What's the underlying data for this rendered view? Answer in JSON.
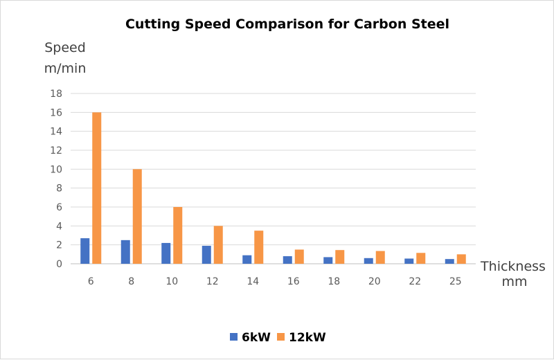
{
  "chart_data": {
    "type": "bar",
    "title": "Cutting Speed Comparison for Carbon Steel",
    "ylabel": [
      "Speed",
      "m/min"
    ],
    "xlabel": [
      "Thickness",
      "mm"
    ],
    "categories": [
      "6",
      "8",
      "10",
      "12",
      "14",
      "16",
      "18",
      "20",
      "22",
      "25"
    ],
    "series": [
      {
        "name": "6kW",
        "color": "#4472C4",
        "values": [
          2.7,
          2.5,
          2.2,
          1.9,
          0.9,
          0.8,
          0.7,
          0.6,
          0.55,
          0.5
        ]
      },
      {
        "name": "12kW",
        "color": "#F79646",
        "values": [
          16,
          10,
          6,
          4,
          3.5,
          1.5,
          1.45,
          1.35,
          1.15,
          1.0
        ]
      }
    ],
    "ylim": [
      0,
      18
    ],
    "yticks": [
      0,
      2,
      4,
      6,
      8,
      10,
      12,
      14,
      16,
      18
    ],
    "grid": true,
    "legend": "bottom"
  }
}
